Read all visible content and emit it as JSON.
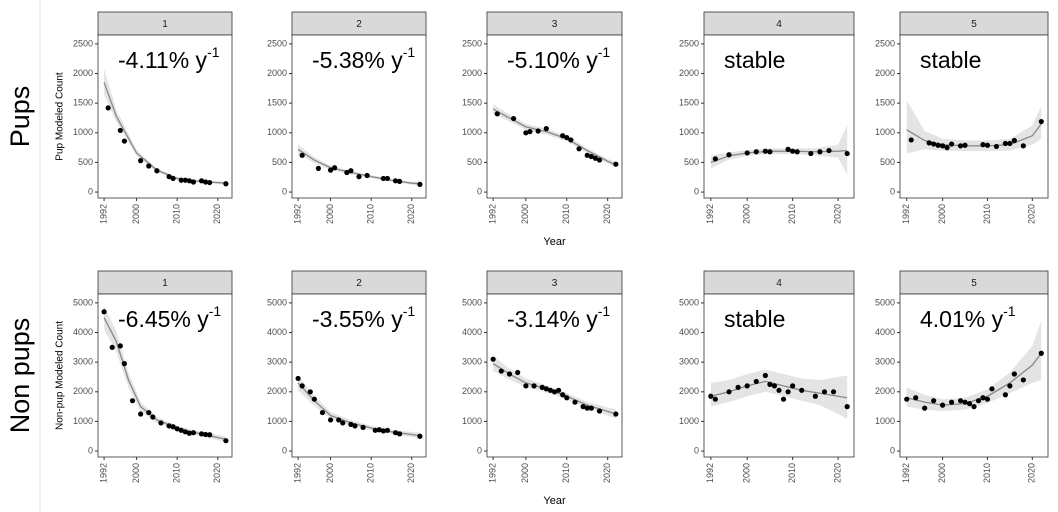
{
  "row_labels": [
    "Pups",
    "Non pups"
  ],
  "chart_data": [
    {
      "type": "line",
      "title": "1",
      "annotation": {
        "text": "-4.11% y",
        "sup": "-1"
      },
      "ylabel": "Pup Modeled Count",
      "points": {
        "x": [
          1993,
          1996,
          1997,
          2001,
          2003,
          2005,
          2008,
          2009,
          2011,
          2012,
          2013,
          2014,
          2016,
          2017,
          2018,
          2022
        ],
        "values": [
          1420,
          1040,
          860,
          530,
          440,
          360,
          260,
          230,
          200,
          200,
          190,
          170,
          190,
          170,
          160,
          140
        ]
      },
      "fit": {
        "x": [
          1992,
          1995,
          2000,
          2005,
          2010,
          2015,
          2020,
          2022
        ],
        "values": [
          1850,
          1280,
          660,
          370,
          230,
          185,
          160,
          150
        ],
        "lower": [
          1650,
          1180,
          610,
          340,
          205,
          160,
          135,
          115
        ],
        "upper": [
          2080,
          1390,
          715,
          400,
          255,
          210,
          185,
          185
        ]
      },
      "point_color": "#000000",
      "fit_color": "#888888",
      "band_color": "#dddddd",
      "xlim": [
        1990.5,
        2023.5
      ],
      "ylim": [
        -100,
        2650
      ],
      "xticks": [
        1992,
        2000,
        2010,
        2020
      ],
      "yticks": [
        0,
        500,
        1000,
        1500,
        2000,
        2500
      ]
    },
    {
      "type": "line",
      "title": "2",
      "annotation": {
        "text": "-5.38% y",
        "sup": "-1"
      },
      "points": {
        "x": [
          1993,
          1997,
          2000,
          2001,
          2004,
          2005,
          2007,
          2009,
          2013,
          2014,
          2016,
          2017,
          2022
        ],
        "values": [
          620,
          400,
          370,
          410,
          330,
          360,
          260,
          280,
          230,
          230,
          190,
          180,
          130
        ]
      },
      "fit": {
        "x": [
          1992,
          1996,
          2000,
          2005,
          2010,
          2015,
          2020,
          2022
        ],
        "values": [
          720,
          540,
          410,
          330,
          260,
          200,
          150,
          140
        ],
        "lower": [
          640,
          490,
          375,
          300,
          235,
          175,
          125,
          105
        ],
        "upper": [
          800,
          590,
          445,
          360,
          285,
          225,
          175,
          170
        ]
      },
      "point_color": "#000000",
      "fit_color": "#888888",
      "band_color": "#dddddd",
      "xlim": [
        1990.5,
        2023.5
      ],
      "ylim": [
        -100,
        2650
      ],
      "xticks": [
        1992,
        2000,
        2010,
        2020
      ],
      "yticks": [
        0,
        500,
        1000,
        1500,
        2000,
        2500
      ]
    },
    {
      "type": "line",
      "title": "3",
      "annotation": {
        "text": "-5.10% y",
        "sup": "-1"
      },
      "xlabel": "Year",
      "points": {
        "x": [
          1993,
          1997,
          2000,
          2001,
          2003,
          2005,
          2009,
          2010,
          2011,
          2013,
          2015,
          2016,
          2017,
          2018,
          2022
        ],
        "values": [
          1320,
          1240,
          1000,
          1020,
          1030,
          1070,
          950,
          920,
          880,
          730,
          620,
          600,
          570,
          540,
          470
        ]
      },
      "fit": {
        "x": [
          1992,
          1996,
          2000,
          2005,
          2010,
          2015,
          2020,
          2022
        ],
        "values": [
          1400,
          1250,
          1100,
          1020,
          900,
          700,
          520,
          460
        ],
        "lower": [
          1320,
          1190,
          1050,
          970,
          855,
          660,
          480,
          410
        ],
        "upper": [
          1480,
          1310,
          1150,
          1070,
          945,
          740,
          560,
          510
        ]
      },
      "point_color": "#000000",
      "fit_color": "#888888",
      "band_color": "#dddddd",
      "xlim": [
        1990.5,
        2023.5
      ],
      "ylim": [
        -100,
        2650
      ],
      "xticks": [
        1992,
        2000,
        2010,
        2020
      ],
      "yticks": [
        0,
        500,
        1000,
        1500,
        2000,
        2500
      ]
    },
    {
      "type": "line",
      "title": "4",
      "annotation": {
        "text": "stable"
      },
      "points": {
        "x": [
          1993,
          1996,
          2000,
          2002,
          2004,
          2005,
          2009,
          2010,
          2011,
          2014,
          2016,
          2018,
          2022
        ],
        "values": [
          560,
          630,
          660,
          680,
          690,
          680,
          720,
          690,
          680,
          650,
          680,
          700,
          650
        ]
      },
      "fit": {
        "x": [
          1992,
          1996,
          2000,
          2005,
          2010,
          2015,
          2020,
          2022
        ],
        "values": [
          500,
          610,
          660,
          690,
          690,
          680,
          690,
          700
        ],
        "lower": [
          400,
          550,
          610,
          640,
          640,
          620,
          580,
          300
        ],
        "upper": [
          620,
          670,
          710,
          740,
          740,
          740,
          800,
          1130
        ]
      },
      "point_color": "#000000",
      "fit_color": "#888888",
      "band_color": "#dddddd",
      "xlim": [
        1990.5,
        2023.5
      ],
      "ylim": [
        -100,
        2650
      ],
      "xticks": [
        1992,
        2000,
        2010,
        2020
      ],
      "yticks": [
        0,
        500,
        1000,
        1500,
        2000,
        2500
      ]
    },
    {
      "type": "line",
      "title": "5",
      "annotation": {
        "text": "stable"
      },
      "points": {
        "x": [
          1993,
          1997,
          1998,
          1999,
          2000,
          2001,
          2002,
          2004,
          2005,
          2009,
          2010,
          2012,
          2014,
          2015,
          2016,
          2018,
          2022
        ],
        "values": [
          880,
          830,
          810,
          790,
          780,
          750,
          810,
          780,
          790,
          800,
          790,
          770,
          820,
          820,
          870,
          780,
          1190
        ]
      },
      "fit": {
        "x": [
          1992,
          1996,
          2000,
          2005,
          2010,
          2015,
          2020,
          2022
        ],
        "values": [
          1050,
          870,
          800,
          780,
          780,
          800,
          950,
          1150
        ],
        "lower": [
          650,
          720,
          700,
          690,
          690,
          700,
          800,
          900
        ],
        "upper": [
          1550,
          1030,
          900,
          870,
          870,
          900,
          1120,
          1450
        ]
      },
      "point_color": "#000000",
      "fit_color": "#888888",
      "band_color": "#dddddd",
      "xlim": [
        1990.5,
        2023.5
      ],
      "ylim": [
        -100,
        2650
      ],
      "xticks": [
        1992,
        2000,
        2010,
        2020
      ],
      "yticks": [
        0,
        500,
        1000,
        1500,
        2000,
        2500
      ]
    },
    {
      "type": "line",
      "title": "1",
      "annotation": {
        "text": "-6.45% y",
        "sup": "-1"
      },
      "ylabel": "Non-pup Modeled Count",
      "points": {
        "x": [
          1992,
          1994,
          1996,
          1997,
          1999,
          2001,
          2003,
          2004,
          2006,
          2008,
          2009,
          2010,
          2011,
          2012,
          2013,
          2014,
          2016,
          2017,
          2018,
          2022
        ],
        "values": [
          4700,
          3500,
          3550,
          2950,
          1700,
          1250,
          1300,
          1150,
          950,
          850,
          820,
          750,
          700,
          650,
          600,
          620,
          580,
          560,
          550,
          350
        ]
      },
      "fit": {
        "x": [
          1992,
          1995,
          1998,
          2001,
          2005,
          2010,
          2015,
          2022
        ],
        "values": [
          4500,
          3700,
          2400,
          1500,
          1050,
          780,
          600,
          400
        ],
        "lower": [
          4100,
          3350,
          2150,
          1350,
          950,
          700,
          530,
          300
        ],
        "upper": [
          4900,
          4050,
          2650,
          1650,
          1150,
          860,
          670,
          500
        ]
      },
      "point_color": "#000000",
      "fit_color": "#888888",
      "band_color": "#dddddd",
      "xlim": [
        1990.5,
        2023.5
      ],
      "ylim": [
        -200,
        5300
      ],
      "xticks": [
        1992,
        2000,
        2010,
        2020
      ],
      "yticks": [
        0,
        1000,
        2000,
        3000,
        4000,
        5000
      ]
    },
    {
      "type": "line",
      "title": "2",
      "annotation": {
        "text": "-3.55% y",
        "sup": "-1"
      },
      "points": {
        "x": [
          1992,
          1993,
          1995,
          1996,
          1998,
          2000,
          2002,
          2003,
          2005,
          2006,
          2008,
          2011,
          2012,
          2013,
          2014,
          2016,
          2017,
          2022
        ],
        "values": [
          2450,
          2200,
          2000,
          1750,
          1300,
          1050,
          1050,
          950,
          900,
          850,
          800,
          700,
          720,
          680,
          700,
          620,
          580,
          500
        ]
      },
      "fit": {
        "x": [
          1992,
          1996,
          2000,
          2005,
          2010,
          2015,
          2022
        ],
        "values": [
          2300,
          1700,
          1200,
          950,
          780,
          650,
          520
        ],
        "lower": [
          2050,
          1530,
          1080,
          860,
          700,
          580,
          420
        ],
        "upper": [
          2550,
          1870,
          1320,
          1040,
          860,
          720,
          620
        ]
      },
      "point_color": "#000000",
      "fit_color": "#888888",
      "band_color": "#dddddd",
      "xlim": [
        1990.5,
        2023.5
      ],
      "ylim": [
        -200,
        5300
      ],
      "xticks": [
        1992,
        2000,
        2010,
        2020
      ],
      "yticks": [
        0,
        1000,
        2000,
        3000,
        4000,
        5000
      ]
    },
    {
      "type": "line",
      "title": "3",
      "annotation": {
        "text": "-3.14% y",
        "sup": "-1"
      },
      "xlabel": "Year",
      "points": {
        "x": [
          1992,
          1994,
          1996,
          1998,
          2000,
          2002,
          2004,
          2005,
          2006,
          2007,
          2008,
          2009,
          2010,
          2012,
          2014,
          2015,
          2016,
          2018,
          2022
        ],
        "values": [
          3100,
          2700,
          2600,
          2650,
          2200,
          2200,
          2150,
          2100,
          2050,
          2000,
          2050,
          1900,
          1800,
          1650,
          1500,
          1450,
          1450,
          1350,
          1250
        ]
      },
      "fit": {
        "x": [
          1992,
          1996,
          2000,
          2005,
          2010,
          2015,
          2022
        ],
        "values": [
          2950,
          2600,
          2300,
          2100,
          1850,
          1550,
          1250
        ],
        "lower": [
          2700,
          2420,
          2150,
          1980,
          1740,
          1440,
          1100
        ],
        "upper": [
          3200,
          2780,
          2450,
          2220,
          1960,
          1660,
          1400
        ]
      },
      "point_color": "#000000",
      "fit_color": "#888888",
      "band_color": "#dddddd",
      "xlim": [
        1990.5,
        2023.5
      ],
      "ylim": [
        -200,
        5300
      ],
      "xticks": [
        1992,
        2000,
        2010,
        2020
      ],
      "yticks": [
        0,
        1000,
        2000,
        3000,
        4000,
        5000
      ]
    },
    {
      "type": "line",
      "title": "4",
      "annotation": {
        "text": "stable"
      },
      "points": {
        "x": [
          1992,
          1993,
          1996,
          1998,
          2000,
          2002,
          2004,
          2005,
          2006,
          2007,
          2008,
          2009,
          2010,
          2012,
          2015,
          2017,
          2019,
          2022
        ],
        "values": [
          1850,
          1750,
          2000,
          2150,
          2200,
          2350,
          2550,
          2250,
          2200,
          2050,
          1750,
          2000,
          2200,
          2050,
          1850,
          2000,
          2000,
          1500
        ]
      },
      "fit": {
        "x": [
          1992,
          1996,
          2000,
          2004,
          2008,
          2012,
          2016,
          2022
        ],
        "values": [
          1850,
          2000,
          2200,
          2350,
          2200,
          2050,
          1950,
          1800
        ],
        "lower": [
          1500,
          1650,
          1850,
          2000,
          1850,
          1700,
          1550,
          1100
        ],
        "upper": [
          2300,
          2400,
          2600,
          2750,
          2600,
          2450,
          2400,
          2550
        ]
      },
      "point_color": "#000000",
      "fit_color": "#888888",
      "band_color": "#dddddd",
      "xlim": [
        1990.5,
        2023.5
      ],
      "ylim": [
        -200,
        5300
      ],
      "xticks": [
        1992,
        2000,
        2010,
        2020
      ],
      "yticks": [
        0,
        1000,
        2000,
        3000,
        4000,
        5000
      ]
    },
    {
      "type": "line",
      "title": "5",
      "annotation": {
        "text": "4.01% y",
        "sup": "-1"
      },
      "points": {
        "x": [
          1992,
          1994,
          1996,
          1998,
          2000,
          2002,
          2004,
          2005,
          2006,
          2007,
          2008,
          2009,
          2010,
          2011,
          2014,
          2015,
          2016,
          2018,
          2022
        ],
        "values": [
          1750,
          1800,
          1450,
          1700,
          1550,
          1650,
          1700,
          1650,
          1600,
          1500,
          1700,
          1800,
          1750,
          2100,
          1900,
          2200,
          2600,
          2400,
          3300
        ]
      },
      "fit": {
        "x": [
          1992,
          1996,
          2000,
          2005,
          2010,
          2015,
          2020,
          2022
        ],
        "values": [
          1800,
          1650,
          1550,
          1600,
          1850,
          2300,
          2900,
          3300
        ],
        "lower": [
          1500,
          1400,
          1350,
          1400,
          1620,
          1950,
          2300,
          2400
        ],
        "upper": [
          2150,
          1900,
          1750,
          1800,
          2080,
          2650,
          3550,
          4400
        ]
      },
      "point_color": "#000000",
      "fit_color": "#888888",
      "band_color": "#dddddd",
      "xlim": [
        1990.5,
        2023.5
      ],
      "ylim": [
        -200,
        5300
      ],
      "xticks": [
        1992,
        2000,
        2010,
        2020
      ],
      "yticks": [
        0,
        1000,
        2000,
        3000,
        4000,
        5000
      ]
    }
  ]
}
